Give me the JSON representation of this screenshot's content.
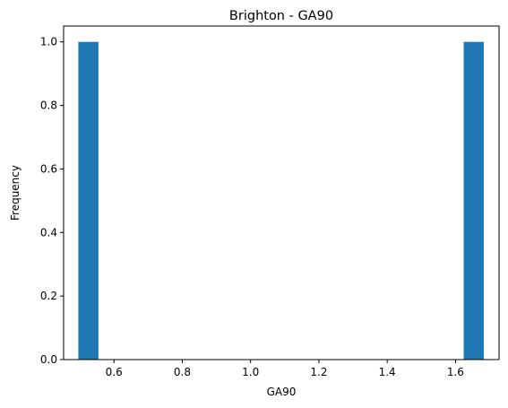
{
  "chart_data": {
    "type": "bar",
    "title": "Brighton - GA90",
    "xlabel": "GA90",
    "ylabel": "Frequency",
    "xlim": [
      0.4525,
      1.7275
    ],
    "ylim": [
      0,
      1.05
    ],
    "xticks": [
      0.6,
      0.8,
      1.0,
      1.2,
      1.4,
      1.6
    ],
    "xtick_labels": [
      "0.6",
      "0.8",
      "1.0",
      "1.2",
      "1.4",
      "1.6"
    ],
    "yticks": [
      0.0,
      0.2,
      0.4,
      0.6,
      0.8,
      1.0
    ],
    "ytick_labels": [
      "0.0",
      "0.2",
      "0.4",
      "0.6",
      "0.8",
      "1.0"
    ],
    "bins": [
      {
        "x0": 0.4956,
        "x1": 0.5545,
        "count": 1
      },
      {
        "x0": 1.6239,
        "x1": 1.6828,
        "count": 1
      }
    ],
    "bar_color": "#1f77b4",
    "grid": false
  }
}
